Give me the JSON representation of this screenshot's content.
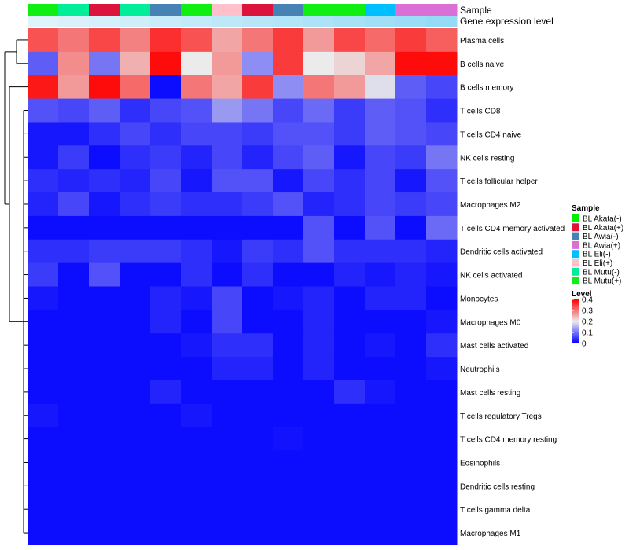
{
  "chart_data": {
    "type": "heatmap",
    "title": "",
    "annotation_tracks": [
      "Sample",
      "Gene expression level"
    ],
    "samples": [
      "BL Mutu(+)",
      "BL Mutu(-)",
      "BL Akata(+)",
      "BL Mutu(-)",
      "BL Awia(-)",
      "BL Mutu(+)",
      "BL Eli(+)",
      "BL Akata(+)",
      "BL Awia(-)",
      "BL Mutu(+)",
      "BL Mutu(+)",
      "BL Eli(-)",
      "BL Awia(+)",
      "BL Awia(+)"
    ],
    "gene_expression_level": [
      0.06,
      0.1,
      0.14,
      0.18,
      0.22,
      0.26,
      0.3,
      0.34,
      0.38,
      0.42,
      0.46,
      0.5,
      0.54,
      0.58
    ],
    "rows": [
      "Plasma cells",
      "B cells naive",
      "B cells memory",
      "T cells CD8",
      "T cells CD4 naive",
      "NK cells resting",
      "T cells follicular helper",
      "Macrophages M2",
      "T cells CD4 memory activated",
      "Dendritic cells activated",
      "NK cells activated",
      "Monocytes",
      "Macrophages M0",
      "Mast cells activated",
      "Neutrophils",
      "Mast cells resting",
      "T cells regulatory  Tregs",
      "T cells CD4 memory resting",
      "Eosinophils",
      "Dendritic cells resting",
      "T cells gamma delta",
      "Macrophages M1"
    ],
    "values": [
      [
        0.33,
        0.3,
        0.34,
        0.29,
        0.36,
        0.33,
        0.26,
        0.3,
        0.35,
        0.27,
        0.34,
        0.31,
        0.35,
        0.32
      ],
      [
        0.08,
        0.28,
        0.1,
        0.25,
        0.39,
        0.2,
        0.27,
        0.12,
        0.35,
        0.2,
        0.22,
        0.26,
        0.39,
        0.39
      ],
      [
        0.38,
        0.27,
        0.39,
        0.31,
        0.01,
        0.3,
        0.26,
        0.35,
        0.12,
        0.3,
        0.27,
        0.19,
        0.08,
        0.06
      ],
      [
        0.07,
        0.06,
        0.08,
        0.04,
        0.06,
        0.07,
        0.13,
        0.1,
        0.06,
        0.09,
        0.05,
        0.08,
        0.07,
        0.04
      ],
      [
        0.02,
        0.02,
        0.04,
        0.06,
        0.04,
        0.06,
        0.06,
        0.05,
        0.07,
        0.07,
        0.05,
        0.08,
        0.07,
        0.06
      ],
      [
        0.02,
        0.05,
        0.01,
        0.04,
        0.05,
        0.03,
        0.06,
        0.03,
        0.06,
        0.08,
        0.02,
        0.06,
        0.05,
        0.1
      ],
      [
        0.04,
        0.03,
        0.04,
        0.03,
        0.06,
        0.02,
        0.07,
        0.07,
        0.02,
        0.06,
        0.04,
        0.06,
        0.02,
        0.07
      ],
      [
        0.03,
        0.06,
        0.02,
        0.04,
        0.05,
        0.04,
        0.04,
        0.05,
        0.07,
        0.03,
        0.04,
        0.06,
        0.05,
        0.06
      ],
      [
        0.01,
        0.01,
        0.01,
        0.01,
        0.01,
        0.01,
        0.01,
        0.01,
        0.01,
        0.07,
        0.01,
        0.07,
        0.01,
        0.09
      ],
      [
        0.04,
        0.04,
        0.05,
        0.05,
        0.05,
        0.04,
        0.02,
        0.05,
        0.04,
        0.07,
        0.04,
        0.04,
        0.04,
        0.03
      ],
      [
        0.05,
        0.01,
        0.07,
        0.01,
        0.01,
        0.04,
        0.01,
        0.04,
        0.01,
        0.01,
        0.03,
        0.02,
        0.03,
        0.02
      ],
      [
        0.02,
        0.01,
        0.01,
        0.01,
        0.03,
        0.02,
        0.06,
        0.01,
        0.02,
        0.03,
        0.01,
        0.03,
        0.03,
        0.01
      ],
      [
        0.01,
        0.01,
        0.01,
        0.01,
        0.03,
        0.01,
        0.06,
        0.01,
        0.01,
        0.03,
        0.01,
        0.01,
        0.01,
        0.02
      ],
      [
        0.01,
        0.01,
        0.01,
        0.01,
        0.01,
        0.02,
        0.04,
        0.04,
        0.01,
        0.03,
        0.01,
        0.02,
        0.01,
        0.04
      ],
      [
        0.01,
        0.01,
        0.01,
        0.01,
        0.01,
        0.01,
        0.03,
        0.03,
        0.01,
        0.03,
        0.01,
        0.01,
        0.01,
        0.02
      ],
      [
        0.01,
        0.01,
        0.01,
        0.01,
        0.03,
        0.01,
        0.01,
        0.01,
        0.01,
        0.01,
        0.04,
        0.02,
        0.01,
        0.01
      ],
      [
        0.02,
        0.01,
        0.01,
        0.01,
        0.01,
        0.02,
        0.01,
        0.01,
        0.01,
        0.01,
        0.01,
        0.01,
        0.01,
        0.01
      ],
      [
        0.01,
        0.01,
        0.01,
        0.01,
        0.01,
        0.01,
        0.01,
        0.01,
        0.015,
        0.01,
        0.01,
        0.01,
        0.01,
        0.01
      ],
      [
        0.01,
        0.01,
        0.01,
        0.01,
        0.01,
        0.01,
        0.01,
        0.01,
        0.01,
        0.01,
        0.01,
        0.01,
        0.01,
        0.01
      ],
      [
        0.01,
        0.01,
        0.01,
        0.01,
        0.01,
        0.01,
        0.01,
        0.01,
        0.01,
        0.01,
        0.01,
        0.01,
        0.01,
        0.01
      ],
      [
        0.01,
        0.01,
        0.01,
        0.01,
        0.01,
        0.01,
        0.01,
        0.01,
        0.01,
        0.01,
        0.01,
        0.01,
        0.01,
        0.01
      ],
      [
        0.01,
        0.01,
        0.01,
        0.01,
        0.01,
        0.01,
        0.01,
        0.01,
        0.01,
        0.01,
        0.01,
        0.01,
        0.01,
        0.01
      ]
    ],
    "legend_sample": {
      "title": "Sample",
      "entries": [
        {
          "label": "BL Akata(-)",
          "color": "#00ee00"
        },
        {
          "label": "BL Akata(+)",
          "color": "#dc143c"
        },
        {
          "label": "BL Awia(-)",
          "color": "#4682b4"
        },
        {
          "label": "BL Awia(+)",
          "color": "#da70d6"
        },
        {
          "label": "BL Eli(-)",
          "color": "#00bfff"
        },
        {
          "label": "BL Eli(+)",
          "color": "#ffc0cb"
        },
        {
          "label": "BL Mutu(-)",
          "color": "#00ee99"
        },
        {
          "label": "BL Mutu(+)",
          "color": "#11ee11"
        }
      ]
    },
    "legend_level": {
      "title": "Level",
      "range": [
        0,
        0.4
      ],
      "ticks": [
        0.4,
        0.3,
        0.2,
        0.1,
        0
      ],
      "colors": [
        "#0000ff",
        "#ebebeb",
        "#ff0000"
      ]
    }
  }
}
